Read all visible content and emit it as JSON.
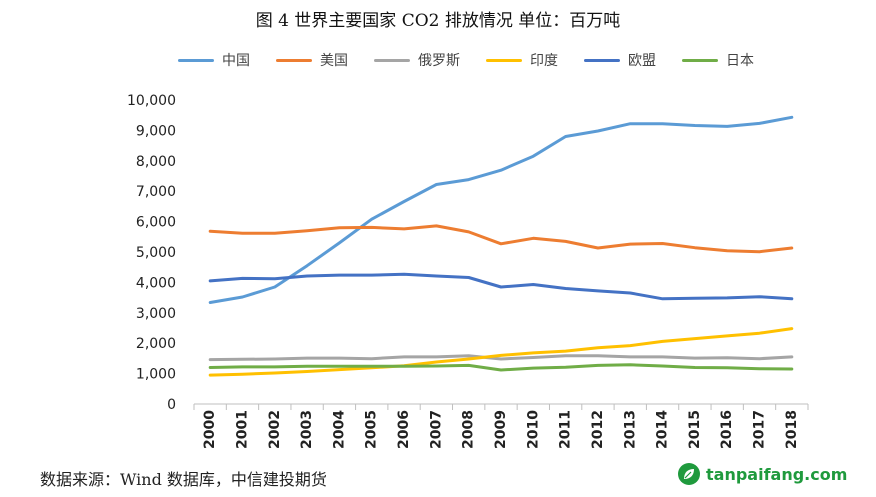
{
  "title": "图 4  世界主要国家 CO2 排放情况  单位：百万吨",
  "source": "数据来源：Wind 数据库，中信建投期货",
  "watermark": "tanpaifang.com",
  "chart_data": {
    "type": "line",
    "categories": [
      "2000",
      "2001",
      "2002",
      "2003",
      "2004",
      "2005",
      "2006",
      "2007",
      "2008",
      "2009",
      "2010",
      "2011",
      "2012",
      "2013",
      "2014",
      "2015",
      "2016",
      "2017",
      "2018"
    ],
    "ylim": [
      0,
      10000
    ],
    "yticks": [
      0,
      1000,
      2000,
      3000,
      4000,
      5000,
      6000,
      7000,
      8000,
      9000,
      10000
    ],
    "ytick_labels": [
      "0",
      "1,000",
      "2,000",
      "3,000",
      "4,000",
      "5,000",
      "6,000",
      "7,000",
      "8,000",
      "9,000",
      "10,000"
    ],
    "legend_position": "top",
    "grid": false,
    "series": [
      {
        "name": "中国",
        "color": "#5b9bd5",
        "values": [
          3340,
          3520,
          3850,
          4550,
          5300,
          6080,
          6660,
          7220,
          7380,
          7690,
          8150,
          8800,
          8980,
          9220,
          9220,
          9160,
          9130,
          9230,
          9430
        ]
      },
      {
        "name": "美国",
        "color": "#ed7d31",
        "values": [
          5680,
          5620,
          5620,
          5700,
          5800,
          5810,
          5760,
          5860,
          5660,
          5270,
          5450,
          5350,
          5130,
          5260,
          5280,
          5140,
          5040,
          5010,
          5130
        ]
      },
      {
        "name": "俄罗斯",
        "color": "#a5a5a5",
        "values": [
          1460,
          1470,
          1480,
          1510,
          1510,
          1490,
          1550,
          1550,
          1590,
          1480,
          1530,
          1590,
          1590,
          1550,
          1550,
          1510,
          1520,
          1490,
          1550
        ]
      },
      {
        "name": "印度",
        "color": "#ffc000",
        "values": [
          950,
          980,
          1020,
          1070,
          1130,
          1190,
          1260,
          1380,
          1480,
          1600,
          1680,
          1740,
          1850,
          1920,
          2060,
          2150,
          2240,
          2330,
          2480
        ]
      },
      {
        "name": "欧盟",
        "color": "#4472c4",
        "values": [
          4050,
          4130,
          4120,
          4210,
          4240,
          4240,
          4270,
          4210,
          4160,
          3850,
          3930,
          3800,
          3720,
          3650,
          3460,
          3480,
          3490,
          3530,
          3460
        ]
      },
      {
        "name": "日本",
        "color": "#70ad47",
        "values": [
          1200,
          1220,
          1220,
          1240,
          1240,
          1240,
          1240,
          1250,
          1270,
          1120,
          1180,
          1210,
          1270,
          1290,
          1250,
          1200,
          1190,
          1160,
          1150
        ]
      }
    ]
  }
}
